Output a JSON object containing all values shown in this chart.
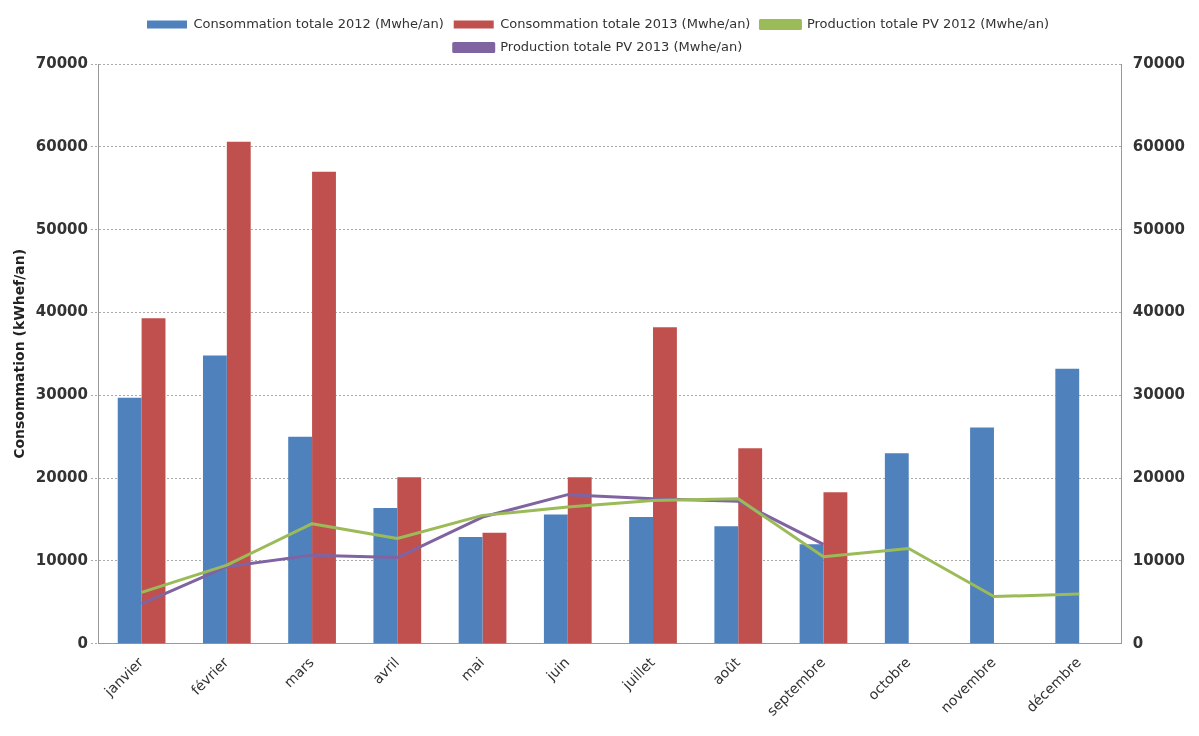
{
  "chart_data": {
    "type": "bar",
    "ylabel": "Consommation (kWhef/an)",
    "categories": [
      "janvier",
      "février",
      "mars",
      "avril",
      "mai",
      "juin",
      "juillet",
      "août",
      "septembre",
      "octobre",
      "novembre",
      "décembre"
    ],
    "series": [
      {
        "name": "Consommation totale 2012 (Mwhe/an)",
        "color": "#4f81bd",
        "values": [
          29700,
          34800,
          25000,
          16400,
          12900,
          15600,
          15300,
          14200,
          12000,
          23000,
          26100,
          33200
        ]
      },
      {
        "name": "Consommation totale 2013 (Mwhe/an)",
        "color": "#c0504d",
        "values": [
          39300,
          60600,
          57000,
          20100,
          13400,
          20100,
          38200,
          23600,
          18300,
          null,
          null,
          null
        ]
      },
      {
        "name": "Production totale PV 2012 (Mwhe/an)",
        "type": "line",
        "color": "#9bbb59",
        "values": [
          6200,
          9500,
          14500,
          12700,
          15500,
          16500,
          17300,
          17500,
          10500,
          11500,
          5700,
          6000
        ]
      },
      {
        "name": "Production totale PV 2013 (Mwhe/an)",
        "type": "line",
        "color": "#8064a2",
        "values": [
          4800,
          9300,
          10700,
          10400,
          15300,
          18000,
          17500,
          17200,
          12000,
          null,
          null,
          null
        ]
      }
    ],
    "ylim": [
      0,
      70000
    ],
    "yticks": [
      0,
      10000,
      20000,
      30000,
      40000,
      50000,
      60000,
      70000
    ],
    "y2lim": [
      0,
      70000
    ],
    "y2ticks": [
      0,
      10000,
      20000,
      30000,
      40000,
      50000,
      60000,
      70000
    ],
    "grid": "y",
    "legend": "top",
    "marker": "none",
    "line_style": "solid"
  }
}
